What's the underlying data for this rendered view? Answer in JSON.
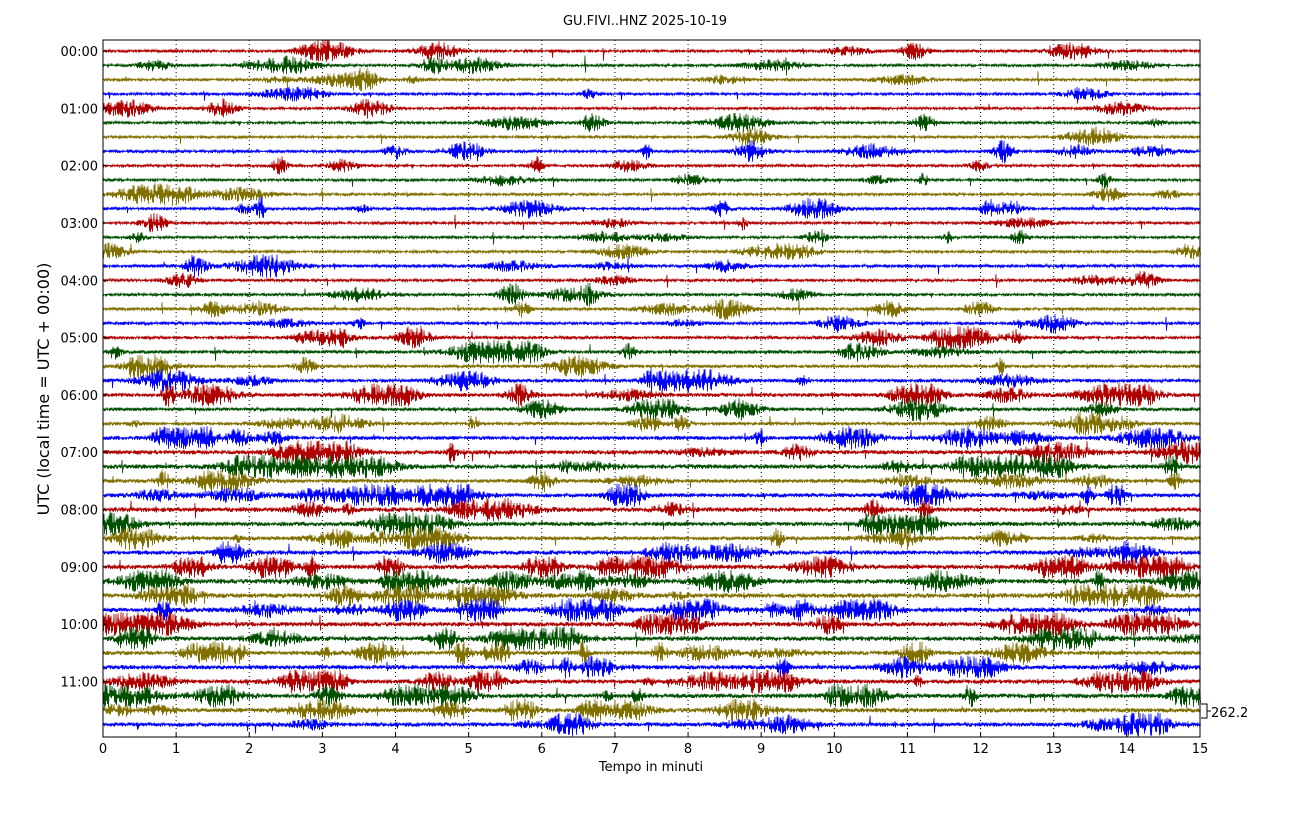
{
  "chart_data": {
    "type": "line",
    "title": "GU.FIVI..HNZ 2025-10-19",
    "xlabel": "Tempo in minuti",
    "ylabel": "UTC (local time = UTC + 00:00)",
    "xlim": [
      0,
      15
    ],
    "x_ticks": [
      "0",
      "1",
      "2",
      "3",
      "4",
      "5",
      "6",
      "7",
      "8",
      "9",
      "10",
      "11",
      "12",
      "13",
      "14",
      "15"
    ],
    "y_tick_labels": [
      "00:00",
      "01:00",
      "02:00",
      "03:00",
      "04:00",
      "05:00",
      "06:00",
      "07:00",
      "08:00",
      "09:00",
      "10:00",
      "11:00"
    ],
    "traces_per_hour": 4,
    "trace_minutes": 15,
    "trace_colors": [
      "#b00000",
      "#005000",
      "#807000",
      "#0000ff"
    ],
    "trace_noise_level": [
      1,
      1,
      1,
      1,
      1,
      1,
      1,
      1.3,
      1,
      1,
      1.1,
      1.3,
      1,
      1,
      1,
      1.5,
      1.2,
      1.3,
      1.2,
      1.4,
      1.5,
      1.7,
      1.4,
      1.8,
      2,
      1.7,
      1.5,
      2,
      2.4,
      2.6,
      2,
      2.2,
      2.6,
      2.4,
      2,
      2.4,
      2.6,
      2.8,
      2.8,
      2.8,
      2.6,
      2.6,
      2.4,
      2.4,
      2.4,
      2.6,
      2.6,
      2.4
    ],
    "grid": "vertical dotted at each minute",
    "scale_label": "262.2"
  }
}
